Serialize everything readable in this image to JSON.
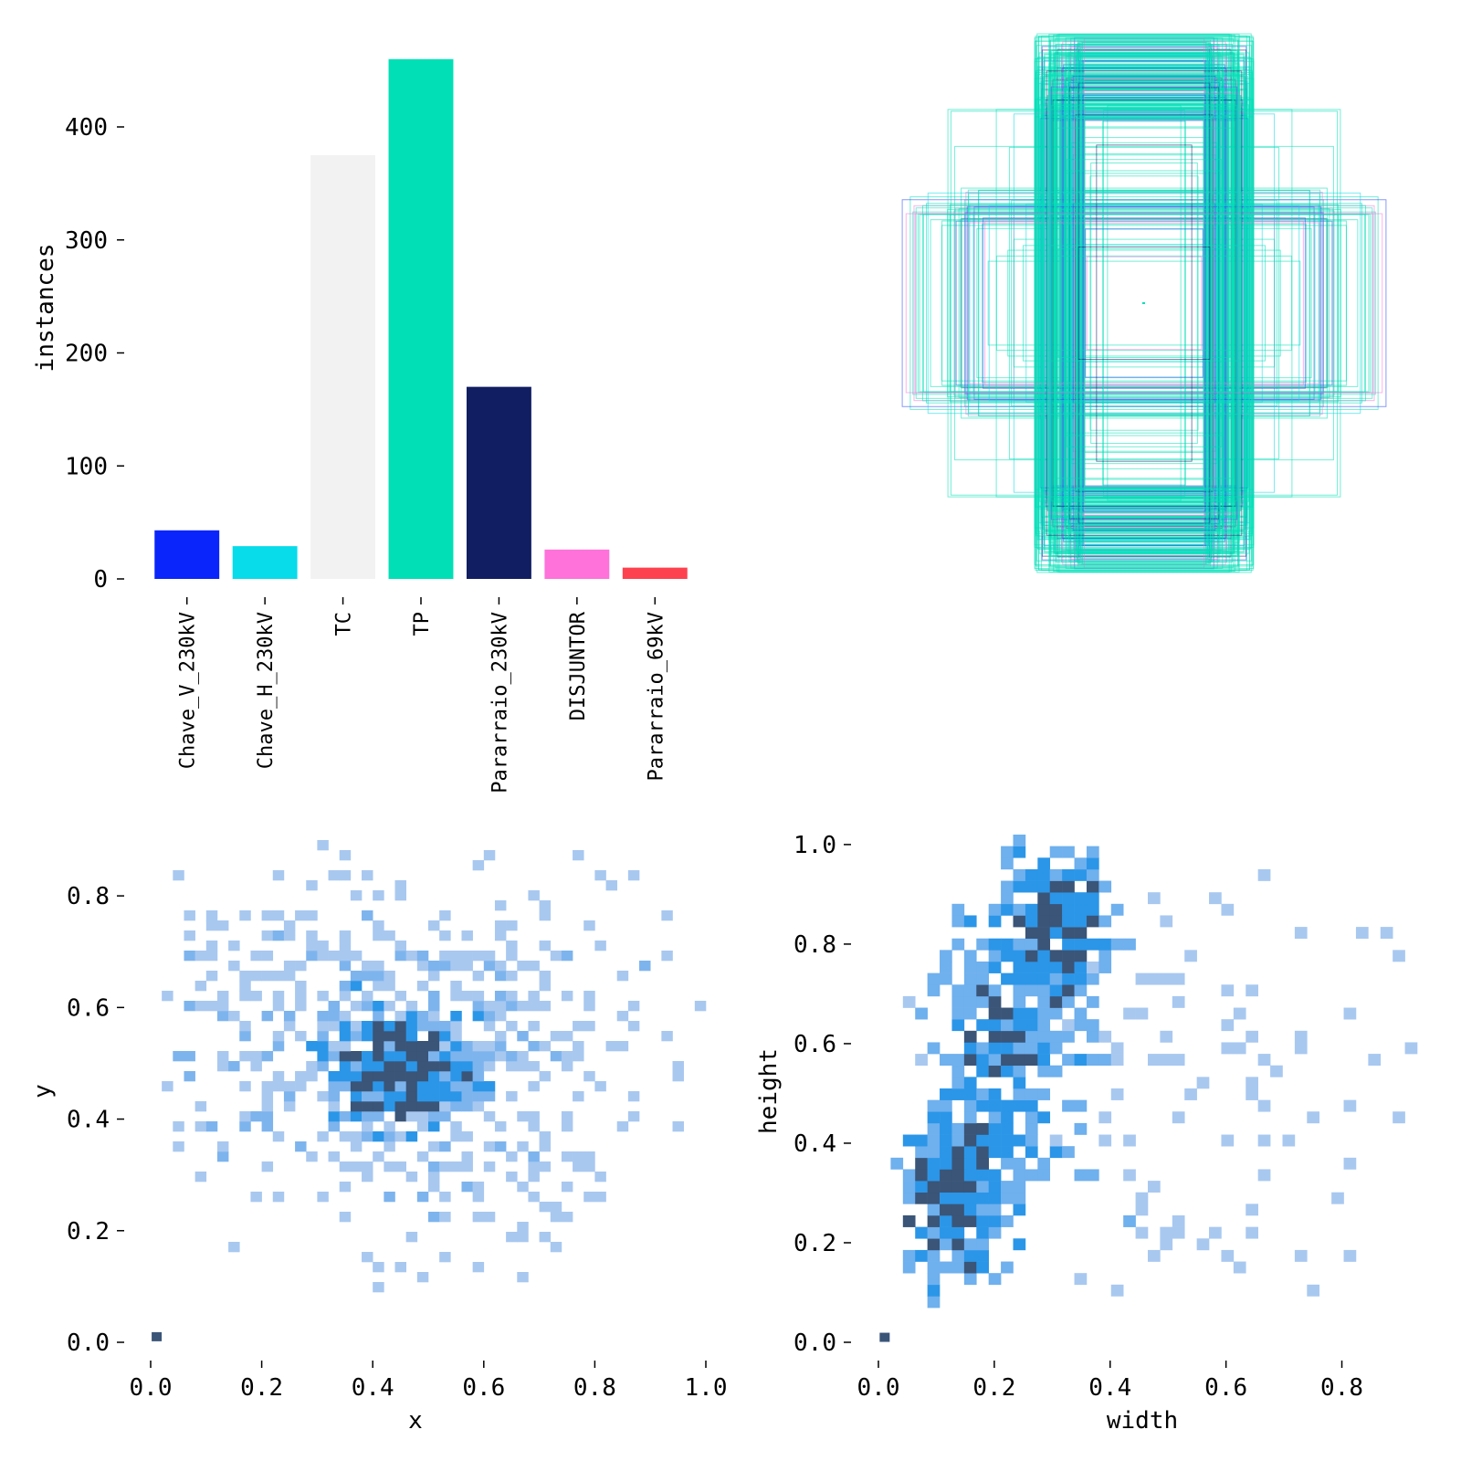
{
  "chart_data": [
    {
      "id": "class-counts",
      "type": "bar",
      "title": "",
      "xlabel": "",
      "ylabel": "instances",
      "ylim": [
        0,
        480
      ],
      "yticks": [
        0,
        100,
        200,
        300,
        400
      ],
      "ytick_labels": [
        "0",
        "100",
        "200",
        "300",
        "400"
      ],
      "categories": [
        "Chave_V_230kV",
        "Chave_H_230kV",
        "TC",
        "TP",
        "Pararraio_230kV",
        "DISJUNTOR",
        "Pararraio_69kV"
      ],
      "values": [
        43,
        29,
        375,
        460,
        170,
        26,
        10
      ],
      "colors": [
        "#0a25fb",
        "#08dbea",
        "#f2f2f2",
        "#00dfb6",
        "#111e62",
        "#fe72da",
        "#fe414f"
      ]
    },
    {
      "id": "box-overlay",
      "type": "other",
      "description_kind": "bounding-box overlay",
      "colors": [
        "#00dfb6",
        "#2a47f5",
        "#fe72da",
        "#08dbea",
        "#111e62"
      ]
    },
    {
      "id": "xy-hist",
      "type": "heatmap",
      "xlabel": "x",
      "ylabel": "y",
      "xlim": [
        0,
        1.0
      ],
      "ylim": [
        0,
        0.9
      ],
      "xticks": [
        0,
        0.2,
        0.4,
        0.6,
        0.8,
        1.0
      ],
      "xtick_labels": [
        "0.0",
        "0.2",
        "0.4",
        "0.6",
        "0.8",
        "1.0"
      ],
      "yticks": [
        0,
        0.2,
        0.4,
        0.6,
        0.8
      ],
      "ytick_labels": [
        "0.0",
        "0.2",
        "0.4",
        "0.6",
        "0.8"
      ],
      "clusters": [
        {
          "cx": 0.45,
          "cy": 0.49,
          "sx": 0.065,
          "sy": 0.055,
          "n": 240,
          "weight": 3
        },
        {
          "cx": 0.4,
          "cy": 0.55,
          "sx": 0.25,
          "sy": 0.16,
          "n": 420,
          "weight": 1
        },
        {
          "cx": 0.55,
          "cy": 0.45,
          "sx": 0.17,
          "sy": 0.16,
          "n": 160,
          "weight": 1
        }
      ],
      "outlier_bins": [
        {
          "x": 0.01,
          "y": 0.01,
          "level": 3
        }
      ],
      "colors": [
        "#a8c8f0",
        "#7db4ee",
        "#2b96e8",
        "#3a5578"
      ]
    },
    {
      "id": "wh-hist",
      "type": "heatmap",
      "xlabel": "width",
      "ylabel": "height",
      "xlim": [
        0,
        0.93
      ],
      "ylim": [
        0,
        1.02
      ],
      "xticks": [
        0,
        0.2,
        0.4,
        0.6,
        0.8
      ],
      "xtick_labels": [
        "0.0",
        "0.2",
        "0.4",
        "0.6",
        "0.8"
      ],
      "yticks": [
        0,
        0.2,
        0.4,
        0.6,
        0.8,
        1.0
      ],
      "ytick_labels": [
        "0.0",
        "0.2",
        "0.4",
        "0.6",
        "0.8",
        "1.0"
      ],
      "clusters": [
        {
          "cx": 0.14,
          "cy": 0.3,
          "sx": 0.05,
          "sy": 0.1,
          "n": 260,
          "weight": 2
        },
        {
          "cx": 0.23,
          "cy": 0.6,
          "sx": 0.06,
          "sy": 0.14,
          "n": 260,
          "weight": 2
        },
        {
          "cx": 0.3,
          "cy": 0.84,
          "sx": 0.05,
          "sy": 0.07,
          "n": 200,
          "weight": 2
        },
        {
          "cx": 0.62,
          "cy": 0.45,
          "sx": 0.22,
          "sy": 0.28,
          "n": 120,
          "weight": 1
        }
      ],
      "outlier_bins": [
        {
          "x": 0.01,
          "y": 0.01,
          "level": 3
        }
      ],
      "colors": [
        "#a8c8f0",
        "#6fb0ee",
        "#2b96e8",
        "#3a5578"
      ]
    }
  ]
}
